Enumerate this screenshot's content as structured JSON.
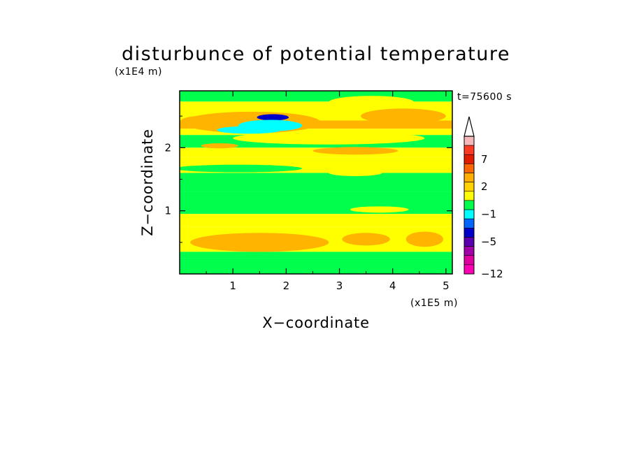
{
  "chart_data": {
    "type": "heatmap",
    "title": "disturbunce of potential temperature",
    "xlabel": "X−coordinate",
    "ylabel": "Z−coordinate",
    "x_unit": "(x1E5 m)",
    "y_unit": "(x1E4 m)",
    "time_label": "t=75600 s",
    "xlim": [
      0,
      5.12
    ],
    "ylim": [
      0,
      2.9
    ],
    "x_ticks": [
      1,
      2,
      3,
      4,
      5
    ],
    "y_ticks": [
      1,
      2
    ],
    "colorbar": {
      "tick_labels": [
        {
          "text": "7",
          "level": 2.5
        },
        {
          "text": "2",
          "level": 5.5
        },
        {
          "text": "−1",
          "level": 8.5
        },
        {
          "text": "−5",
          "level": 11.5
        },
        {
          "text": "−12",
          "level": 15
        }
      ],
      "colors": [
        "#f6b8b8",
        "#ff3b24",
        "#e21c00",
        "#ff6600",
        "#ffae00",
        "#ffd200",
        "#ffff00",
        "#00ff4c",
        "#00ffff",
        "#0066ff",
        "#0000c8",
        "#5a00b0",
        "#a000a8",
        "#e000a0",
        "#ff00b4"
      ],
      "extend": "max",
      "extend_color": "#ffffff"
    },
    "field": {
      "level_colors": {
        "warm": "#ffb400",
        "yellow": "#ffff00",
        "green": "#00ff4c",
        "cyan": "#00ffff",
        "blue": "#0066ff",
        "deep": "#0000c8"
      },
      "bands": [
        {
          "z": [
            2.73,
            2.9
          ],
          "level": "green"
        },
        {
          "z": [
            2.43,
            2.73
          ],
          "level": "yellow"
        },
        {
          "z": [
            2.3,
            2.43
          ],
          "level": "warm"
        },
        {
          "z": [
            2.2,
            2.3
          ],
          "level": "yellow"
        },
        {
          "z": [
            2.0,
            2.2
          ],
          "level": "green"
        },
        {
          "z": [
            1.85,
            2.0
          ],
          "level": "yellow"
        },
        {
          "z": [
            1.6,
            1.85
          ],
          "level": "yellow"
        },
        {
          "z": [
            1.3,
            1.6
          ],
          "level": "green"
        },
        {
          "z": [
            0.95,
            1.3
          ],
          "level": "green"
        },
        {
          "z": [
            0.75,
            0.95
          ],
          "level": "yellow"
        },
        {
          "z": [
            0.35,
            0.75
          ],
          "level": "yellow"
        },
        {
          "z": [
            0.25,
            0.35
          ],
          "level": "green"
        },
        {
          "z": [
            0.0,
            0.25
          ],
          "level": "green"
        }
      ],
      "blobs": [
        {
          "x": 0.35,
          "z": 2.4,
          "rx": 0.35,
          "rz": 0.1,
          "level": "warm"
        },
        {
          "x": 1.35,
          "z": 2.4,
          "rx": 1.3,
          "rz": 0.17,
          "level": "warm"
        },
        {
          "x": 1.3,
          "z": 2.28,
          "rx": 0.6,
          "rz": 0.06,
          "level": "cyan"
        },
        {
          "x": 1.75,
          "z": 2.48,
          "rx": 0.3,
          "rz": 0.05,
          "level": "deep"
        },
        {
          "x": 1.7,
          "z": 2.35,
          "rx": 0.6,
          "rz": 0.09,
          "level": "cyan"
        },
        {
          "x": 4.2,
          "z": 2.5,
          "rx": 0.8,
          "rz": 0.12,
          "level": "warm"
        },
        {
          "x": 3.6,
          "z": 2.72,
          "rx": 0.8,
          "rz": 0.1,
          "level": "yellow"
        },
        {
          "x": 2.8,
          "z": 2.15,
          "rx": 1.8,
          "rz": 0.1,
          "level": "yellow"
        },
        {
          "x": 3.3,
          "z": 1.95,
          "rx": 0.8,
          "rz": 0.06,
          "level": "warm"
        },
        {
          "x": 0.75,
          "z": 2.03,
          "rx": 0.35,
          "rz": 0.04,
          "level": "warm"
        },
        {
          "x": 1.1,
          "z": 1.67,
          "rx": 1.2,
          "rz": 0.06,
          "level": "green"
        },
        {
          "x": 3.3,
          "z": 1.6,
          "rx": 0.5,
          "rz": 0.05,
          "level": "yellow"
        },
        {
          "x": 3.75,
          "z": 1.02,
          "rx": 0.55,
          "rz": 0.05,
          "level": "yellow"
        },
        {
          "x": 1.5,
          "z": 0.5,
          "rx": 1.3,
          "rz": 0.15,
          "level": "warm"
        },
        {
          "x": 4.6,
          "z": 0.55,
          "rx": 0.35,
          "rz": 0.12,
          "level": "warm"
        },
        {
          "x": 3.5,
          "z": 0.55,
          "rx": 0.45,
          "rz": 0.1,
          "level": "warm"
        }
      ]
    }
  }
}
